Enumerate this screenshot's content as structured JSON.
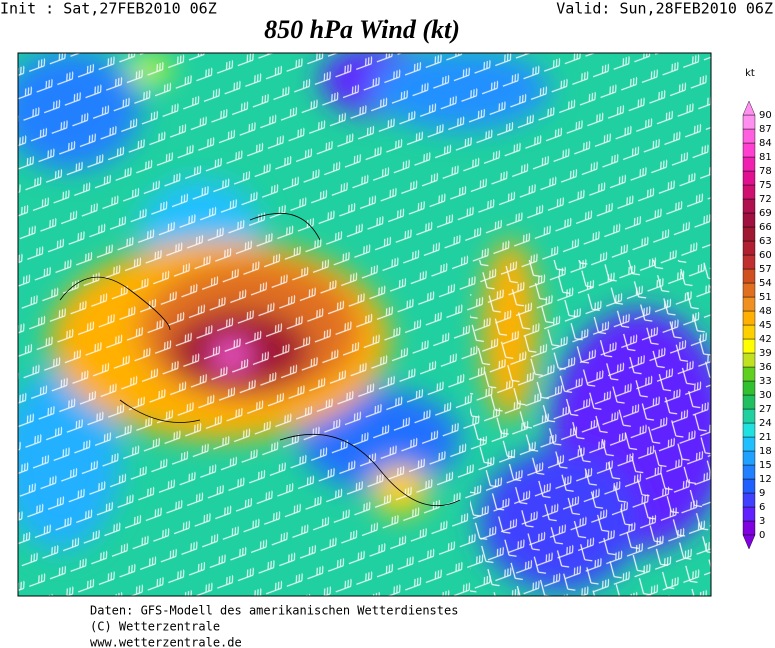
{
  "header": {
    "init": "Init : Sat,27FEB2010 06Z",
    "valid": "Valid: Sun,28FEB2010 06Z",
    "title": "850 hPa Wind (kt)"
  },
  "legend": {
    "unit": "kt",
    "ticks": [
      0,
      3,
      6,
      9,
      12,
      15,
      18,
      21,
      24,
      27,
      30,
      33,
      36,
      39,
      42,
      45,
      48,
      51,
      54,
      57,
      60,
      63,
      66,
      69,
      72,
      75,
      78,
      81,
      84,
      87,
      90
    ],
    "colors": [
      "#8000e0",
      "#6020ff",
      "#4040ff",
      "#2060ff",
      "#2080ff",
      "#20a0ff",
      "#20c0ff",
      "#20e0e0",
      "#20d0a0",
      "#20c060",
      "#30c030",
      "#60d020",
      "#c0e020",
      "#ffff00",
      "#ffd000",
      "#ffb000",
      "#f09020",
      "#e07020",
      "#d05020",
      "#c03030",
      "#b02030",
      "#a01830",
      "#a01040",
      "#b01050",
      "#d01070",
      "#e01090",
      "#f020b0",
      "#ff40d0",
      "#ff60e0",
      "#ff90f0"
    ]
  },
  "footer": {
    "lines": [
      "Daten: GFS-Modell des amerikanischen Wetterdienstes",
      "(C) Wetterzentrale",
      "www.wetterzentrale.de"
    ]
  }
}
